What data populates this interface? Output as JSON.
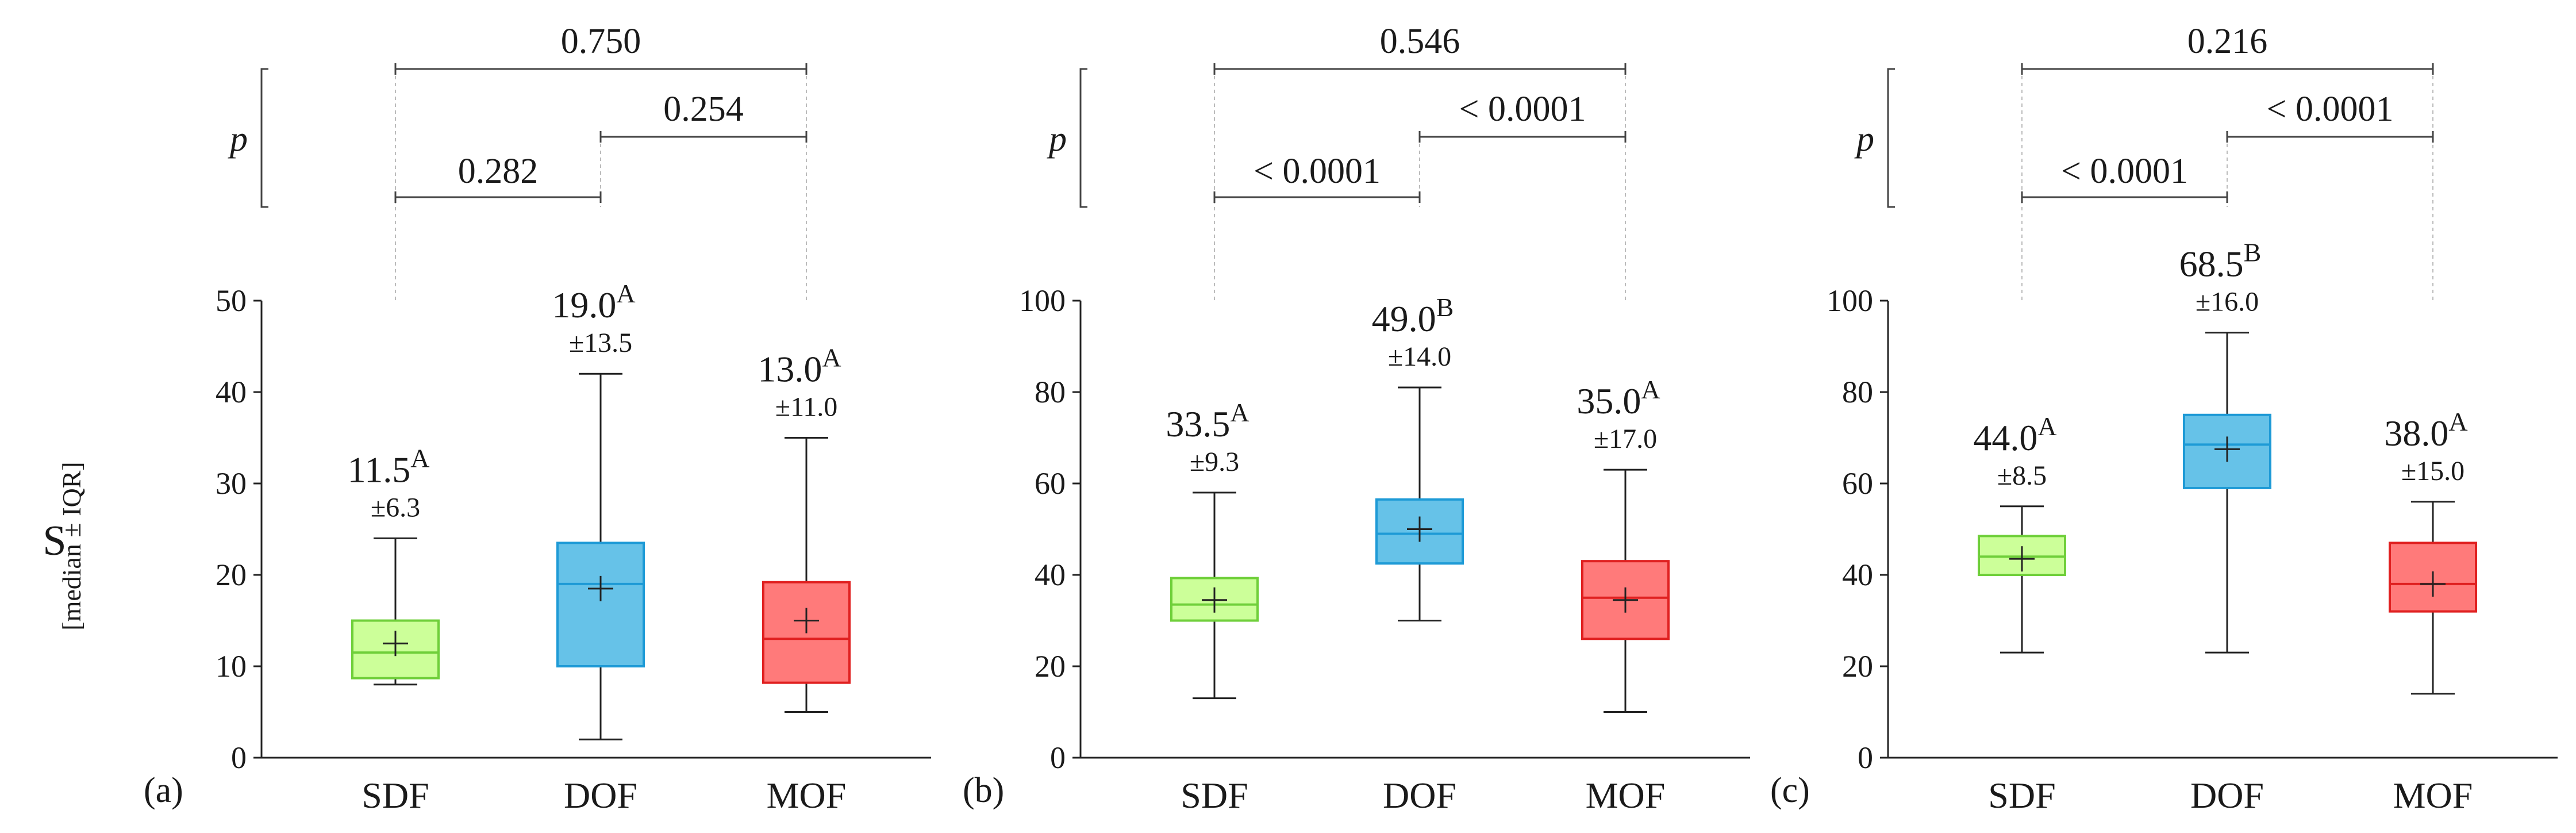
{
  "y_axis": {
    "symbol": "S",
    "unit": "[median ± IQR]"
  },
  "p_label": "p",
  "colors": {
    "SDF": "#ccff99",
    "DOF": "#66c2e8",
    "MOF": "#ff7a7a",
    "SDF_edge": "#6fcf3a",
    "DOF_edge": "#1e9ad6",
    "MOF_edge": "#e02020"
  },
  "chart_data": [
    {
      "type": "box",
      "panel_label": "(a)",
      "categories": [
        "SDF",
        "DOF",
        "MOF"
      ],
      "ylim": [
        0,
        50
      ],
      "yticks": [
        0,
        10,
        20,
        30,
        40,
        50
      ],
      "boxes": [
        {
          "name": "SDF",
          "min": 8,
          "q1": 8.7,
          "median": 11.5,
          "q3": 15,
          "max": 24,
          "mean": 12.5,
          "median_label": "11.5",
          "letter": "A",
          "iqr_label": "±6.3"
        },
        {
          "name": "DOF",
          "min": 2,
          "q1": 10,
          "median": 19.0,
          "q3": 23.5,
          "max": 42,
          "mean": 18.5,
          "median_label": "19.0",
          "letter": "A",
          "iqr_label": "±13.5"
        },
        {
          "name": "MOF",
          "min": 5,
          "q1": 8.2,
          "median": 13.0,
          "q3": 19.2,
          "max": 35,
          "mean": 15,
          "median_label": "13.0",
          "letter": "A",
          "iqr_label": "±11.0"
        }
      ],
      "p_values": [
        {
          "from": "SDF",
          "to": "MOF",
          "label": "0.750"
        },
        {
          "from": "DOF",
          "to": "MOF",
          "label": "0.254"
        },
        {
          "from": "SDF",
          "to": "DOF",
          "label": "0.282"
        }
      ]
    },
    {
      "type": "box",
      "panel_label": "(b)",
      "categories": [
        "SDF",
        "DOF",
        "MOF"
      ],
      "ylim": [
        0,
        100
      ],
      "yticks": [
        0,
        20,
        40,
        60,
        80,
        100
      ],
      "boxes": [
        {
          "name": "SDF",
          "min": 13,
          "q1": 30,
          "median": 33.5,
          "q3": 39.3,
          "max": 58,
          "mean": 34.5,
          "median_label": "33.5",
          "letter": "A",
          "iqr_label": "±9.3"
        },
        {
          "name": "DOF",
          "min": 30,
          "q1": 42.5,
          "median": 49.0,
          "q3": 56.5,
          "max": 81,
          "mean": 50,
          "median_label": "49.0",
          "letter": "B",
          "iqr_label": "±14.0"
        },
        {
          "name": "MOF",
          "min": 10,
          "q1": 26,
          "median": 35.0,
          "q3": 43,
          "max": 63,
          "mean": 34.5,
          "median_label": "35.0",
          "letter": "A",
          "iqr_label": "±17.0"
        }
      ],
      "p_values": [
        {
          "from": "SDF",
          "to": "MOF",
          "label": "0.546"
        },
        {
          "from": "DOF",
          "to": "MOF",
          "label": "< 0.0001"
        },
        {
          "from": "SDF",
          "to": "DOF",
          "label": "< 0.0001"
        }
      ]
    },
    {
      "type": "box",
      "panel_label": "(c)",
      "categories": [
        "SDF",
        "DOF",
        "MOF"
      ],
      "ylim": [
        0,
        100
      ],
      "yticks": [
        0,
        20,
        40,
        60,
        80,
        100
      ],
      "boxes": [
        {
          "name": "SDF",
          "min": 23,
          "q1": 40,
          "median": 44.0,
          "q3": 48.5,
          "max": 55,
          "mean": 43.5,
          "median_label": "44.0",
          "letter": "A",
          "iqr_label": "±8.5"
        },
        {
          "name": "DOF",
          "min": 23,
          "q1": 59,
          "median": 68.5,
          "q3": 75,
          "max": 93,
          "mean": 67.5,
          "median_label": "68.5",
          "letter": "B",
          "iqr_label": "±16.0"
        },
        {
          "name": "MOF",
          "min": 14,
          "q1": 32,
          "median": 38.0,
          "q3": 47,
          "max": 56,
          "mean": 38,
          "median_label": "38.0",
          "letter": "A",
          "iqr_label": "±15.0"
        }
      ],
      "p_values": [
        {
          "from": "SDF",
          "to": "MOF",
          "label": "0.216"
        },
        {
          "from": "DOF",
          "to": "MOF",
          "label": "< 0.0001"
        },
        {
          "from": "SDF",
          "to": "DOF",
          "label": "< 0.0001"
        }
      ]
    }
  ]
}
